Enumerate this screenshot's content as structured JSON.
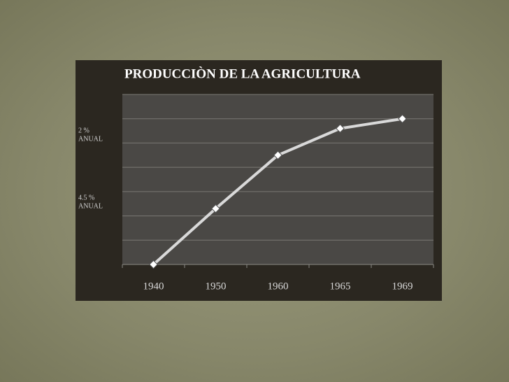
{
  "chart_data": {
    "type": "line",
    "title": "PRODUCCIÒN  DE LA AGRICULTURA",
    "categories": [
      "1940",
      "1950",
      "1960",
      "1965",
      "1969"
    ],
    "values": [
      0,
      2.3,
      4.5,
      5.6,
      6.0
    ],
    "color": "#d9d9d9",
    "ylim": [
      0,
      7
    ],
    "yticks": [
      0,
      1,
      2,
      3,
      4,
      5,
      6,
      7
    ],
    "grid": true,
    "annotations": [
      [
        "2 %",
        "ANUAL"
      ],
      [
        "4.5 %",
        "ANUAL"
      ]
    ]
  }
}
